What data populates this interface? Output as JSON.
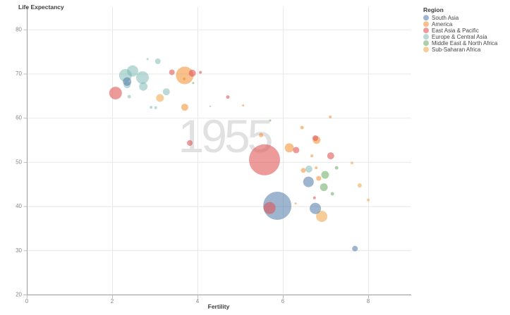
{
  "chart": {
    "watermark": "1955",
    "x_axis": {
      "title": "Fertility",
      "ticks": [
        "0",
        "2",
        "4",
        "6",
        "8"
      ]
    },
    "y_axis": {
      "title": "Life Expectancy",
      "ticks": [
        "20",
        "30",
        "40",
        "50",
        "60",
        "70",
        "80"
      ]
    },
    "legend": {
      "title": "Region"
    }
  },
  "chart_data": {
    "type": "scatter",
    "title": "",
    "xlabel": "Fertility",
    "ylabel": "Life Expectancy",
    "x_range": [
      0,
      9
    ],
    "y_range": [
      20,
      85
    ],
    "grid": true,
    "legend_position": "top-right",
    "x_ticks": [
      0,
      2,
      4,
      6,
      8
    ],
    "y_ticks": [
      20,
      30,
      40,
      50,
      60,
      70,
      80
    ],
    "watermark_year": "1955",
    "point_format": [
      "fertility",
      "life_expectancy",
      "radius_px"
    ],
    "series": [
      {
        "name": "South Asia",
        "color": "rgba(78,121,167,0.55)",
        "points": [
          [
            5.87,
            40.1,
            20
          ],
          [
            6.6,
            45.5,
            7.5
          ],
          [
            6.76,
            39.5,
            8
          ],
          [
            7.69,
            30.4,
            4
          ],
          [
            2.35,
            68.2,
            6
          ]
        ]
      },
      {
        "name": "America",
        "color": "rgba(242,142,43,0.55)",
        "points": [
          [
            3.7,
            69.6,
            12.5
          ],
          [
            3.69,
            68.8,
            2
          ],
          [
            3.7,
            62.4,
            5
          ],
          [
            5.07,
            62.8,
            1.5
          ],
          [
            5.49,
            56.1,
            3
          ],
          [
            6.15,
            53.2,
            6.5
          ],
          [
            6.79,
            55.0,
            5.5
          ],
          [
            6.45,
            57.8,
            2.5
          ],
          [
            6.48,
            48.1,
            3.5
          ],
          [
            6.84,
            46.3,
            3.5
          ],
          [
            6.78,
            48.7,
            2
          ],
          [
            6.3,
            40.6,
            1.5
          ],
          [
            7.11,
            60.2,
            2
          ],
          [
            6.68,
            51.4,
            2
          ]
        ]
      },
      {
        "name": "East Asia & Pacific",
        "color": "rgba(225,87,89,0.6)",
        "points": [
          [
            2.08,
            65.6,
            9
          ],
          [
            3.4,
            70.3,
            4
          ],
          [
            3.88,
            70.1,
            5
          ],
          [
            4.07,
            70.3,
            2
          ],
          [
            4.71,
            64.7,
            2.5
          ],
          [
            3.82,
            54.3,
            4
          ],
          [
            5.57,
            50.5,
            22
          ],
          [
            5.69,
            39.6,
            8.5
          ],
          [
            6.76,
            55.4,
            4
          ],
          [
            6.31,
            52.7,
            4.5
          ],
          [
            7.12,
            51.4,
            5
          ],
          [
            6.74,
            41.9,
            2
          ]
        ]
      },
      {
        "name": "Europe & Central Asia",
        "color": "rgba(115,181,176,0.5)",
        "points": [
          [
            2.31,
            69.6,
            9
          ],
          [
            2.48,
            70.6,
            8
          ],
          [
            2.71,
            69.1,
            9
          ],
          [
            2.73,
            67.1,
            6
          ],
          [
            2.35,
            67.5,
            5
          ],
          [
            3.27,
            65.9,
            5
          ],
          [
            2.4,
            64.8,
            2.5
          ],
          [
            2.91,
            62.4,
            2
          ],
          [
            3.02,
            62.3,
            2
          ],
          [
            2.83,
            73.3,
            1.5
          ],
          [
            3.07,
            72.8,
            4
          ],
          [
            6.61,
            48.4,
            5
          ]
        ]
      },
      {
        "name": "Middle East & North Africa",
        "color": "rgba(89,161,79,0.5)",
        "points": [
          [
            3.9,
            67.9,
            1.5
          ],
          [
            5.7,
            59.4,
            1.5
          ],
          [
            6.99,
            47.1,
            5.5
          ],
          [
            6.96,
            44.3,
            5.5
          ],
          [
            7.26,
            48.7,
            2.5
          ],
          [
            7.16,
            42.8,
            2.5
          ],
          [
            4.3,
            62.6,
            1
          ]
        ]
      },
      {
        "name": "Sub-Saharan Africa",
        "color": "rgba(238,155,52,0.5)",
        "points": [
          [
            3.12,
            64.5,
            5.5
          ],
          [
            6.91,
            37.7,
            8
          ],
          [
            7.62,
            49.8,
            2
          ],
          [
            7.8,
            44.7,
            3
          ],
          [
            8.0,
            41.4,
            2
          ]
        ]
      }
    ]
  }
}
